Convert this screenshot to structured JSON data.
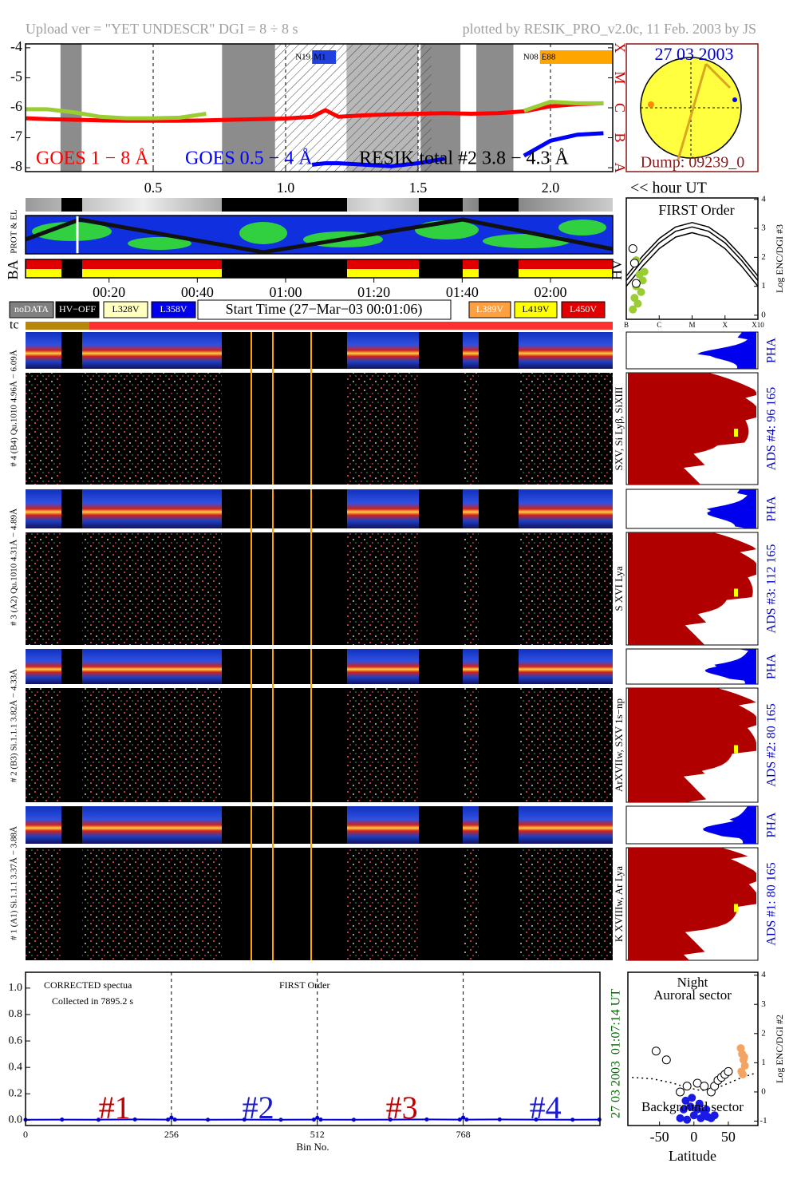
{
  "header": {
    "left": "Upload ver = \"YET UNDESCR\"  DGI =   8 ÷   8 s",
    "right": "plotted by RESIK_PRO_v2.0c, 11 Feb. 2003 by JS"
  },
  "sun": {
    "date": "27 03 2003",
    "dump": "Dump: 09239_0"
  },
  "strips": {
    "prot": "PROT & EL",
    "ba": "BA",
    "hv": "HV",
    "tc": "tc",
    "time_ticks": [
      {
        "value": 20,
        "label": "00:20"
      },
      {
        "value": 40,
        "label": "00:40"
      },
      {
        "value": 60,
        "label": "01:00"
      },
      {
        "value": 80,
        "label": "01:20"
      },
      {
        "value": 100,
        "label": "01:40"
      },
      {
        "value": 120,
        "label": "02:00"
      }
    ],
    "legend": [
      "noDATA",
      "HV−OFF",
      "L328V",
      "L358V",
      "L389V",
      "L419V",
      "L450V"
    ],
    "start": "Start Time (27−Mar−03 00:01:06)"
  },
  "spectrograms": [
    {
      "left": "# 4 (B4) Qu.1010 4.96Å − 6.09Å",
      "line": "SXV, Si Lyβ, SiXIII",
      "ads": "ADS #4:   96 165",
      "pha": "PHA"
    },
    {
      "left": "# 3 (A2) Qu.1010 4.31Å − 4.89Å",
      "line": "S XVI Lya",
      "ads": "ADS #3:   112 165",
      "pha": "PHA"
    },
    {
      "left": "# 2 (B3) Si.1.1.1 3.82Å − 4.33Å",
      "line": "ArXVIIw, SXV 1s−np",
      "ads": "ADS #2:   80 165",
      "pha": "PHA"
    },
    {
      "left": "# 1 (A1) Si.1.1.1 3.37Å − 3.88Å",
      "line": "K XVIIIw, Ar Lya",
      "ads": "ADS #1:   80 165",
      "pha": "PHA"
    }
  ],
  "chart_data": [
    {
      "type": "line",
      "xlim": [
        0.018,
        2.235
      ],
      "ylim": [
        -8.13,
        -3.87
      ],
      "xticks": [
        0.5,
        {
          "value": 1,
          "label": "1.0"
        },
        1.5,
        {
          "value": 2,
          "label": "2.0"
        }
      ],
      "yticks": [
        -8,
        -7,
        -6,
        -5,
        -4
      ],
      "y2ticks": [
        {
          "value": -8,
          "label": "A"
        },
        {
          "value": -7,
          "label": "B"
        },
        {
          "value": -6,
          "label": "C"
        },
        {
          "value": -5,
          "label": "M"
        },
        {
          "value": -4,
          "label": "X"
        }
      ],
      "xlabel": "<< hour UT",
      "grid": "x",
      "x": [
        0.02,
        0.1,
        0.2,
        0.3,
        0.4,
        0.5,
        0.6,
        0.7,
        0.8,
        0.9,
        1.0,
        1.1,
        1.15,
        1.2,
        1.3,
        1.4,
        1.5,
        1.6,
        1.7,
        1.8,
        1.9,
        2.0,
        2.1,
        2.2
      ],
      "series": [
        {
          "name": "GOES 1 − 8 Å",
          "color": "#ff0000",
          "label_color": "#ff0000",
          "values": [
            -6.35,
            -6.38,
            -6.4,
            -6.42,
            -6.43,
            -6.43,
            -6.43,
            -6.42,
            -6.4,
            -6.38,
            -6.36,
            -6.3,
            -6.08,
            -6.3,
            -6.25,
            -6.22,
            -6.2,
            -6.18,
            -6.2,
            -6.18,
            -6.12,
            -5.95,
            -5.88,
            -5.85
          ]
        },
        {
          "name": "GOES 0.5 − 4 Å",
          "color": "#0000ff",
          "label_color": "#0000ff",
          "values": [
            null,
            null,
            null,
            null,
            null,
            null,
            null,
            null,
            null,
            null,
            null,
            -7.9,
            -7.85,
            -7.85,
            -7.9,
            -7.95,
            -7.85,
            -7.7,
            null,
            null,
            -7.6,
            -7.1,
            -6.9,
            -6.85
          ]
        },
        {
          "name": "RESIK total #2  3.8 − 4.3 Å",
          "color": "#9acd32",
          "label_color": "#000000",
          "values": [
            -6.05,
            -6.05,
            -6.15,
            -6.3,
            -6.35,
            -6.35,
            -6.33,
            -6.2,
            null,
            null,
            null,
            null,
            null,
            null,
            null,
            null,
            -6.2,
            null,
            null,
            null,
            -6.1,
            -5.8,
            -5.85,
            -5.85
          ]
        }
      ],
      "shaded": [
        [
          0.15,
          0.23
        ],
        [
          0.76,
          0.96
        ],
        [
          1.51,
          1.66
        ],
        [
          1.72,
          1.86
        ]
      ],
      "light_shaded": [
        [
          1.23,
          1.5
        ]
      ],
      "hatched": [
        [
          0.96,
          1.55
        ]
      ],
      "annotations": [
        {
          "label": "N19",
          "tag": "M1",
          "color": "#2040e0",
          "start": 1.1,
          "end": 1.19
        },
        {
          "label": "N08",
          "tag": "E88",
          "color": "#ffa500",
          "start": 1.96,
          "end": 2.235
        }
      ]
    },
    {
      "type": "line",
      "xlim": [
        0,
        1008
      ],
      "ylim": [
        -0.04,
        1.12
      ],
      "xticks": [
        0,
        256,
        512,
        768
      ],
      "yticks": [
        {
          "value": 0,
          "label": "0.0"
        },
        0.2,
        0.4,
        0.6,
        0.8,
        {
          "value": 1,
          "label": "1.0"
        }
      ],
      "xlabel": "Bin No.",
      "grid": "x",
      "x": [
        0,
        64,
        128,
        192,
        250,
        256,
        262,
        320,
        384,
        448,
        506,
        512,
        518,
        576,
        640,
        704,
        762,
        768,
        774,
        832,
        896,
        960,
        1007
      ],
      "series": [
        {
          "color": "#0000cd",
          "values": [
            0.004,
            0.005,
            0.004,
            0.006,
            0.005,
            0.02,
            0.005,
            0.004,
            0.005,
            0.004,
            0.005,
            0.018,
            0.005,
            0.004,
            0.005,
            0.006,
            0.005,
            0.02,
            0.005,
            0.006,
            0.005,
            0.004,
            0.005
          ]
        }
      ],
      "annotations": [
        "CORRECTED spectua",
        "Collected in  7895.2 s",
        "FIRST Order"
      ],
      "sections": [
        {
          "text": "#1",
          "color": "#c00000"
        },
        {
          "text": "#2",
          "color": "#1a1ad0"
        },
        {
          "text": "#3",
          "color": "#c00000"
        },
        {
          "text": "#4",
          "color": "#1a1ad0"
        }
      ],
      "side": [
        "01:07:14 UT",
        "27 03 2003"
      ]
    },
    {
      "type": "scatter",
      "xlim": [
        -96,
        93
      ],
      "ylim": [
        -1.15,
        4.1
      ],
      "xticks": [
        -50,
        0,
        50
      ],
      "yticks": [
        -1,
        0,
        1,
        2,
        3,
        4
      ],
      "xlabel": "Latitude",
      "ylabel": "Log ENC/DGI #2",
      "annotations": [
        "Night",
        "Auroral sector",
        "Background sector"
      ],
      "series": [
        {
          "style": "dotted",
          "color": "#000000",
          "x": [
            -90,
            -60,
            -30,
            -10,
            10,
            30,
            50,
            70,
            90
          ],
          "values": [
            0.5,
            0.45,
            0.3,
            0.15,
            0.05,
            0.1,
            0.3,
            0.5,
            0.65
          ]
        },
        {
          "style": "open",
          "color": "#000000",
          "x": [
            -55,
            -40,
            -20,
            -10,
            5,
            15,
            25,
            30,
            35,
            40,
            45,
            50
          ],
          "values": [
            1.4,
            1.1,
            0.0,
            0.2,
            0.3,
            0.2,
            0.0,
            0.2,
            0.4,
            0.5,
            0.6,
            0.7
          ]
        },
        {
          "style": "filled",
          "color": "#1a1ae6",
          "x": [
            -20,
            -15,
            -10,
            -5,
            0,
            5,
            10,
            15,
            20,
            25,
            30,
            -12,
            -3,
            8,
            18
          ],
          "values": [
            -0.9,
            -0.6,
            -0.95,
            -0.5,
            -0.8,
            -0.6,
            -0.9,
            -0.7,
            -0.85,
            -0.9,
            -0.8,
            -0.3,
            -0.2,
            -0.4,
            -0.6
          ]
        },
        {
          "style": "filled",
          "color": "#f4a460",
          "x": [
            68,
            70,
            72,
            74,
            69,
            71,
            73
          ],
          "values": [
            1.5,
            1.3,
            1.1,
            0.9,
            0.7,
            0.6,
            1.2
          ]
        }
      ]
    },
    {
      "type": "scatter",
      "title": "FIRST Order",
      "xlim": [
        -7,
        -3
      ],
      "ylim": [
        -0.14,
        4.05
      ],
      "xticks": [
        {
          "value": -7,
          "label": "B"
        },
        {
          "value": -6,
          "label": "C"
        },
        {
          "value": -5,
          "label": "M"
        },
        {
          "value": -4,
          "label": "X"
        },
        {
          "value": -3,
          "label": "X10"
        }
      ],
      "yticks": [
        0,
        1,
        2,
        3,
        4
      ],
      "ylabel": "Log ENC/DGI #3",
      "series": [
        {
          "style": "line",
          "color": "#000000",
          "x": [
            -7,
            -6.5,
            -6,
            -5.5,
            -5,
            -4.5,
            -4,
            -3.5,
            -3
          ],
          "values": [
            1.35,
            2.05,
            2.65,
            3.05,
            3.2,
            3.05,
            2.65,
            2.05,
            1.35
          ]
        },
        {
          "style": "line",
          "color": "#000000",
          "x": [
            -7,
            -6.5,
            -6,
            -5.5,
            -5,
            -4.5,
            -4,
            -3.5,
            -3
          ],
          "values": [
            1.2,
            1.9,
            2.5,
            2.9,
            3.05,
            2.9,
            2.5,
            1.9,
            1.2
          ]
        },
        {
          "style": "line",
          "color": "#000000",
          "x": [
            -7,
            -6.5,
            -6,
            -5.5,
            -5,
            -4.5,
            -4,
            -3.5,
            -3
          ],
          "values": [
            1.0,
            1.7,
            2.3,
            2.7,
            2.85,
            2.7,
            2.3,
            1.7,
            1.0
          ]
        },
        {
          "style": "filled",
          "color": "#9acd32",
          "x": [
            -6.8,
            -6.75,
            -6.7,
            -6.6,
            -6.55,
            -6.5,
            -6.45,
            -6.7,
            -6.65
          ],
          "values": [
            0.2,
            0.6,
            1.0,
            1.4,
            0.8,
            1.2,
            1.5,
            1.9,
            0.4
          ]
        },
        {
          "style": "open",
          "color": "#000000",
          "x": [
            -6.8,
            -6.75,
            -6.7
          ],
          "values": [
            2.3,
            1.8,
            1.1
          ]
        }
      ]
    }
  ]
}
